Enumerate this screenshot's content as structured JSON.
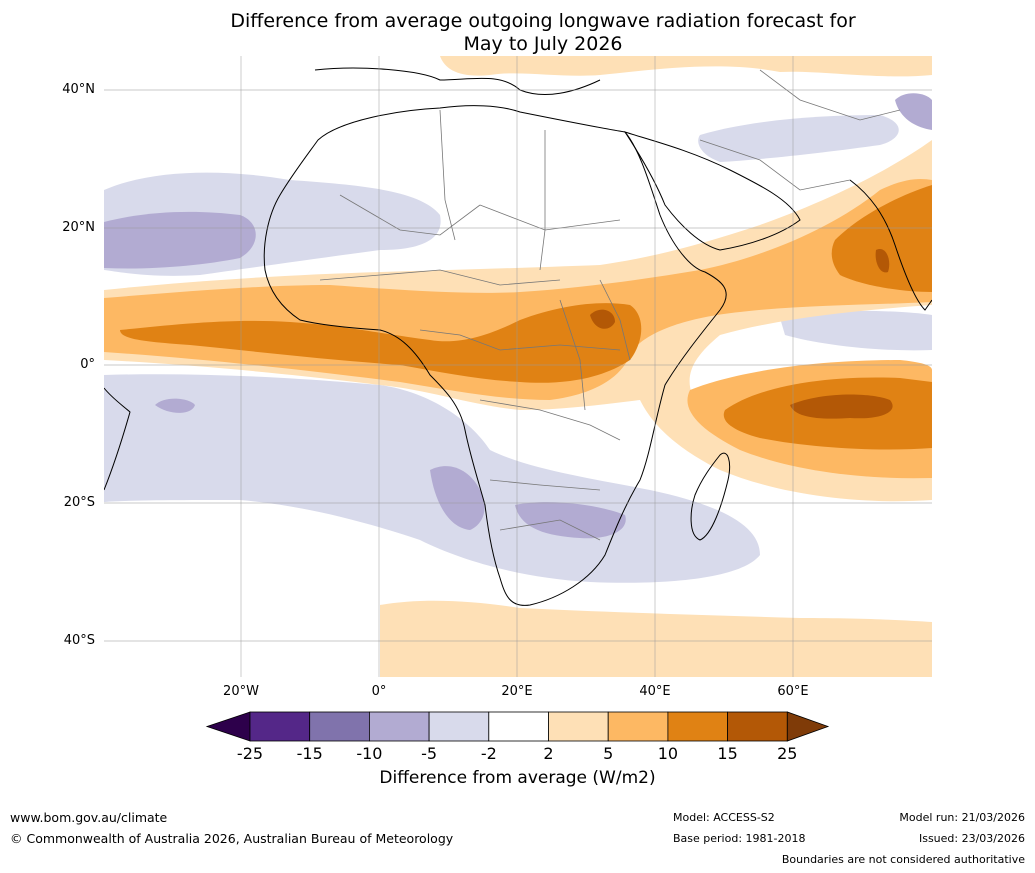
{
  "title": {
    "line1": "Difference from average outgoing longwave radiation forecast for",
    "line2": "May to July 2026"
  },
  "map": {
    "lat_labels": [
      "40°N",
      "20°N",
      "0°",
      "20°S",
      "40°S"
    ],
    "lon_labels": [
      "20°W",
      "0°",
      "20°E",
      "40°E",
      "60°E"
    ]
  },
  "colorbar": {
    "ticks": [
      "-25",
      "-15",
      "-10",
      "-5",
      "-2",
      "2",
      "5",
      "10",
      "15",
      "25"
    ],
    "colors": [
      "#2d004b",
      "#542788",
      "#8073ac",
      "#b2abd2",
      "#d8daeb",
      "#ffffff",
      "#fee0b6",
      "#fdb863",
      "#e08214",
      "#b35806",
      "#7f3b08"
    ],
    "label": "Difference from average (W/m2)"
  },
  "footer": {
    "url": "www.bom.gov.au/climate",
    "copyright": "© Commonwealth of Australia 2026, Australian Bureau of Meteorology",
    "model": "Model: ACCESS-S2",
    "base_period": "Base period: 1981-2018",
    "model_run": "Model run: 21/03/2026",
    "issued": "Issued: 23/03/2026",
    "disclaimer": "Boundaries are not considered authoritative"
  }
}
